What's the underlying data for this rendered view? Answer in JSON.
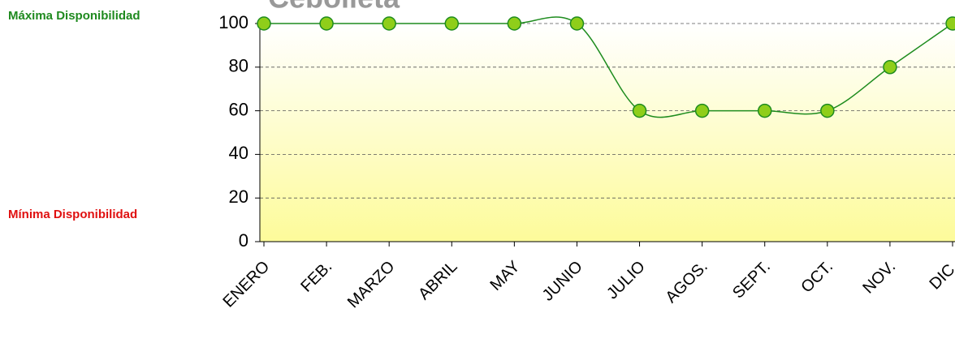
{
  "chart_data": {
    "type": "line",
    "title": "Cebolleta",
    "annotations": [
      {
        "text": "Máxima Disponibilidad",
        "color": "#1f8a1f"
      },
      {
        "text": "Mínima Disponibilidad",
        "color": "#e01010"
      }
    ],
    "categories": [
      "ENERO",
      "FEB.",
      "MARZO",
      "ABRIL",
      "MAY",
      "JUNIO",
      "JULIO",
      "AGOS.",
      "SEPT.",
      "OCT.",
      "NOV.",
      "DIC."
    ],
    "series": [
      {
        "name": "Disponibilidad",
        "color": "#1e8c1e",
        "marker_color": "#8fce1a",
        "values": [
          100,
          100,
          100,
          100,
          100,
          100,
          60,
          60,
          60,
          60,
          80,
          100
        ]
      }
    ],
    "ylim": [
      0,
      100
    ],
    "yticks": [
      0,
      20,
      40,
      60,
      80,
      100
    ],
    "grid": true
  }
}
